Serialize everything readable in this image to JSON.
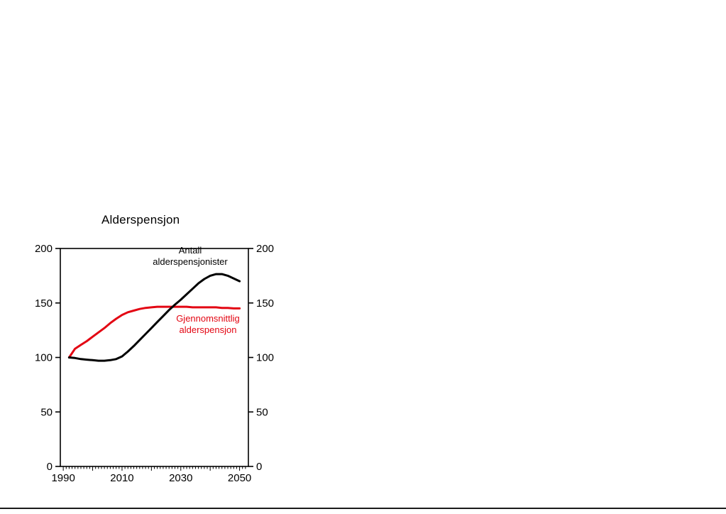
{
  "labels": {
    "title": "Alderspensjon"
  },
  "chart_data": {
    "type": "line",
    "title": "Alderspensjon",
    "x": [
      1992,
      1994,
      1996,
      1998,
      2000,
      2002,
      2004,
      2006,
      2008,
      2010,
      2012,
      2014,
      2016,
      2018,
      2020,
      2022,
      2024,
      2026,
      2028,
      2030,
      2032,
      2034,
      2036,
      2038,
      2040,
      2042,
      2044,
      2046,
      2048,
      2050
    ],
    "series": [
      {
        "name": "Antall alderspensjonister",
        "color": "#000000",
        "label_lines": [
          "Antall",
          "alderspensjonister"
        ],
        "values": [
          100,
          99.5,
          98.5,
          98,
          97.5,
          97,
          97,
          97.5,
          98.5,
          101,
          105.5,
          110.5,
          116,
          121.5,
          127,
          132.5,
          138,
          143.5,
          148.5,
          153,
          158,
          163,
          168,
          172,
          175,
          176.5,
          176.5,
          175,
          172.5,
          170
        ]
      },
      {
        "name": "Gjennomsnittlig alderspensjon",
        "color": "#e30613",
        "label_lines": [
          "Gjennomsnittlig",
          "alderspensjon"
        ],
        "values": [
          100,
          108,
          111.5,
          115,
          119,
          123,
          127,
          131.5,
          135.5,
          139,
          141.5,
          143,
          144.5,
          145.5,
          146,
          146.5,
          146.5,
          146.5,
          146.5,
          146.5,
          146.5,
          146,
          146,
          146,
          146,
          146,
          145.5,
          145.5,
          145,
          145
        ]
      }
    ],
    "xlim": [
      1989,
      2053
    ],
    "ylim": [
      0,
      200
    ],
    "y_ticks": [
      0,
      50,
      100,
      150,
      200
    ],
    "x_tick_labels": [
      1990,
      2010,
      2030,
      2050
    ],
    "minor_x_tick_step": 1,
    "grid": false,
    "legend": "inline-annotations",
    "axis_color": "#000000",
    "background": "#ffffff"
  }
}
